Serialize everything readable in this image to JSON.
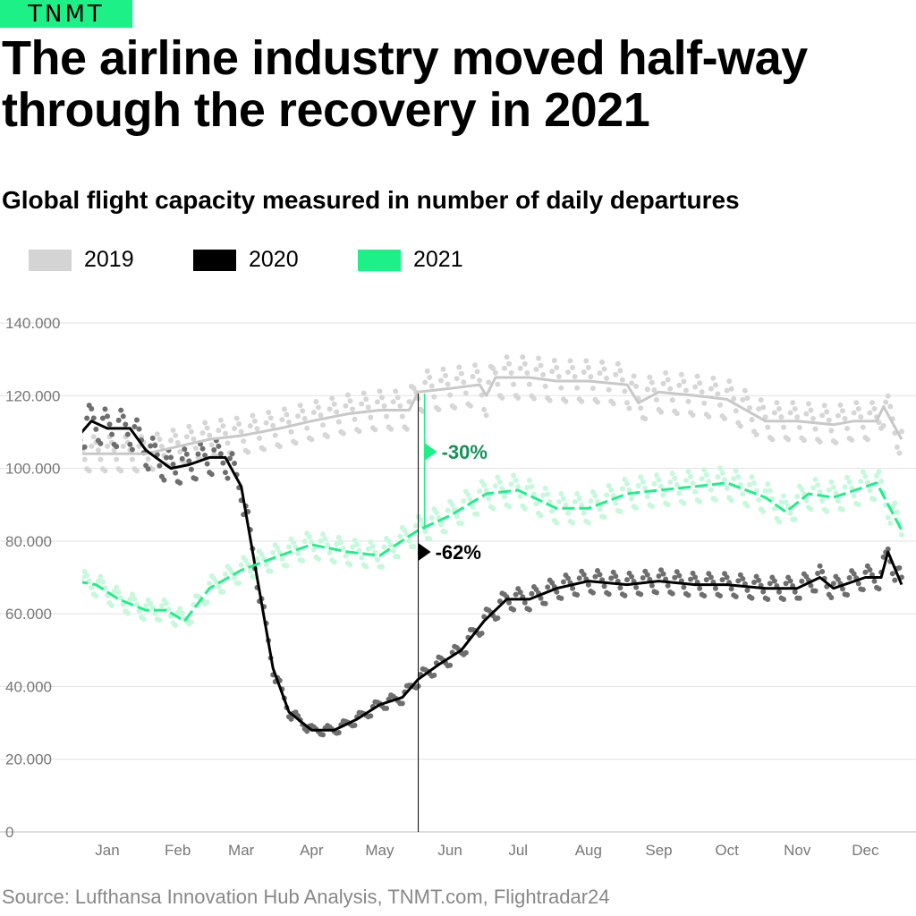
{
  "logo": "TNMT",
  "title": "The airline industry moved half-way through the recovery in 2021",
  "source": "Source: Lufthansa Innovation Hub Analysis, TNMT.com, Flightradar24",
  "chart_data": {
    "type": "line",
    "title": "Global flight capacity measured in number of daily departures",
    "legend_position": "top-left",
    "grid": true,
    "ylim": [
      0,
      140000
    ],
    "yticks": [
      0,
      20000,
      40000,
      60000,
      80000,
      100000,
      120000,
      140000
    ],
    "ytick_labels": [
      "0",
      "20.000",
      "40.000",
      "60.000",
      "80.000",
      "100.000",
      "120.000",
      "140.000"
    ],
    "xtick_labels": [
      "Jan",
      "Feb",
      "Mar",
      "Apr",
      "May",
      "Jun",
      "Jul",
      "Aug",
      "Sep",
      "Oct",
      "Nov",
      "Dec"
    ],
    "series": [
      {
        "name": "2019",
        "color": "#c8c8c8",
        "style": "solid",
        "x": [
          "01-01",
          "01-15",
          "02-01",
          "02-15",
          "03-01",
          "03-15",
          "04-01",
          "04-15",
          "05-01",
          "05-15",
          "05-28",
          "06-01",
          "06-15",
          "06-28",
          "07-01",
          "07-05",
          "07-20",
          "08-01",
          "08-15",
          "09-01",
          "09-06",
          "09-15",
          "10-01",
          "10-15",
          "11-01",
          "11-15",
          "12-01",
          "12-10",
          "12-20",
          "12-23",
          "12-31"
        ],
        "y": [
          104000,
          104000,
          104000,
          106000,
          108000,
          109000,
          111000,
          113000,
          115000,
          116000,
          116000,
          121000,
          122000,
          123000,
          120000,
          125000,
          125000,
          124000,
          124000,
          123000,
          118000,
          121000,
          120000,
          119000,
          113000,
          113000,
          112000,
          113000,
          113000,
          117000,
          108000
        ]
      },
      {
        "name": "2020",
        "color": "#000000",
        "style": "solid",
        "x": [
          "01-01",
          "01-08",
          "01-15",
          "01-25",
          "02-01",
          "02-12",
          "02-20",
          "03-01",
          "03-08",
          "03-15",
          "03-22",
          "03-29",
          "04-05",
          "04-15",
          "04-25",
          "05-05",
          "05-15",
          "05-25",
          "06-01",
          "06-10",
          "06-20",
          "06-30",
          "07-10",
          "07-20",
          "08-01",
          "08-15",
          "09-01",
          "09-15",
          "10-01",
          "10-15",
          "11-01",
          "11-15",
          "11-25",
          "12-01",
          "12-15",
          "12-22",
          "12-25",
          "12-31"
        ],
        "y": [
          108000,
          113000,
          111000,
          111000,
          105000,
          100000,
          101000,
          103000,
          103000,
          95000,
          70000,
          45000,
          33000,
          28000,
          28000,
          31000,
          35000,
          37000,
          42000,
          46000,
          50000,
          58000,
          64000,
          64000,
          67000,
          69000,
          68000,
          69000,
          68000,
          68000,
          67000,
          67000,
          70000,
          67000,
          70000,
          70000,
          77000,
          68000
        ]
      },
      {
        "name": "2021",
        "color": "#1ef088",
        "style": "dashed",
        "x": [
          "01-01",
          "01-10",
          "01-20",
          "02-01",
          "02-10",
          "02-18",
          "03-01",
          "03-15",
          "04-01",
          "04-15",
          "05-01",
          "05-15",
          "06-01",
          "06-15",
          "07-01",
          "07-15",
          "08-01",
          "08-15",
          "09-01",
          "09-15",
          "10-01",
          "10-15",
          "11-01",
          "11-10",
          "11-20",
          "12-01",
          "12-20",
          "12-31"
        ],
        "y": [
          69000,
          68000,
          64000,
          61000,
          61000,
          58000,
          67000,
          72000,
          76000,
          79000,
          77000,
          76000,
          83000,
          87000,
          93000,
          94000,
          89000,
          89000,
          93000,
          94000,
          95000,
          96000,
          92000,
          88000,
          93000,
          92000,
          96000,
          83000
        ]
      }
    ],
    "annotations": [
      {
        "text": "-30%",
        "color": "#14935a",
        "date": "06-01"
      },
      {
        "text": "-62%",
        "color": "#000000",
        "date": "06-01"
      }
    ]
  }
}
